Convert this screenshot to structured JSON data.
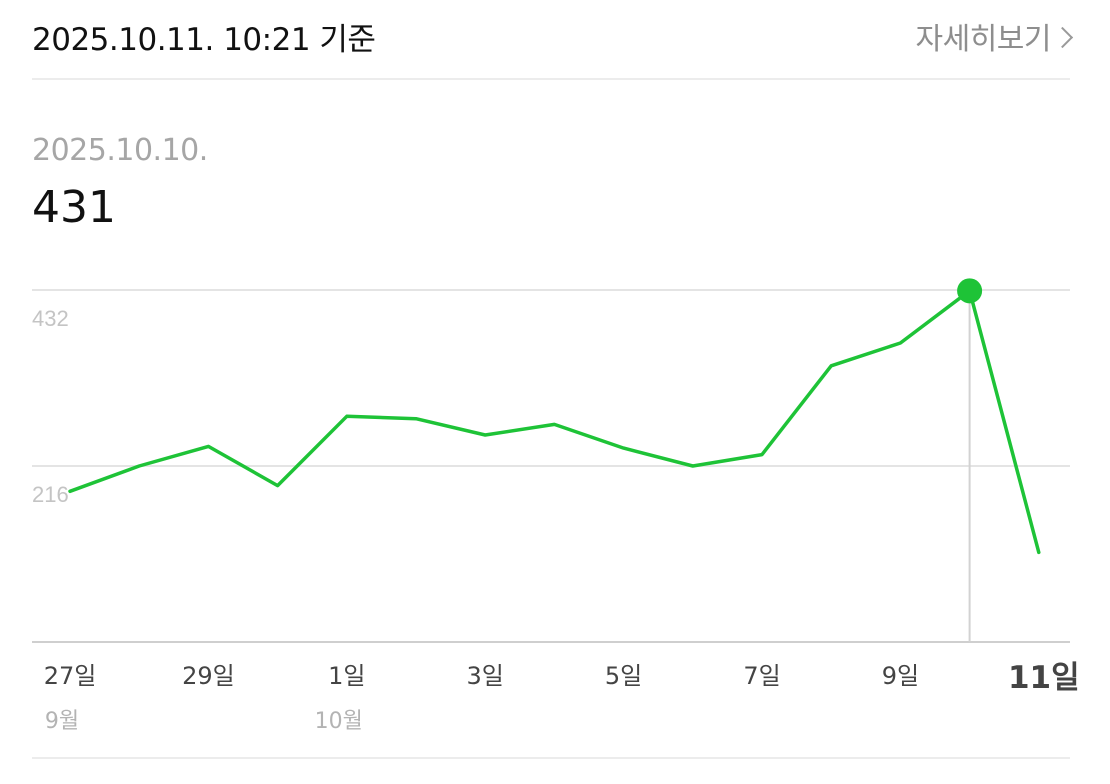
{
  "header": {
    "date_label": "2025.10.11. 10:21 기준",
    "detail_link_label": "자세히보기"
  },
  "selected": {
    "date": "2025.10.10.",
    "value": "431"
  },
  "colors": {
    "line": "#1ec337",
    "grid": "#e4e4e4",
    "axis": "#cfcfcf",
    "tick_text": "#c4c4c4",
    "day_label": "#444444",
    "month_label": "#b3b3b3",
    "highlight_label": "#444444",
    "cursor": "#d2d2d2"
  },
  "chart_data": {
    "type": "line",
    "x": [
      "9/27",
      "9/28",
      "9/29",
      "9/30",
      "10/1",
      "10/2",
      "10/3",
      "10/4",
      "10/5",
      "10/6",
      "10/7",
      "10/8",
      "10/9",
      "10/10",
      "10/11"
    ],
    "series": [
      {
        "values": [
          185,
          216,
          240,
          192,
          277,
          274,
          254,
          267,
          238,
          216,
          230,
          339,
          367,
          431,
          110
        ]
      }
    ],
    "y_ticks": [
      {
        "value": 216,
        "label": "216"
      },
      {
        "value": 432,
        "label": "432"
      }
    ],
    "ylim": [
      0,
      432
    ],
    "x_labels": [
      {
        "index": 0,
        "day": "27일",
        "month": "9월"
      },
      {
        "index": 2,
        "day": "29일",
        "month": ""
      },
      {
        "index": 4,
        "day": "1일",
        "month": "10월"
      },
      {
        "index": 6,
        "day": "3일",
        "month": ""
      },
      {
        "index": 8,
        "day": "5일",
        "month": ""
      },
      {
        "index": 10,
        "day": "7일",
        "month": ""
      },
      {
        "index": 12,
        "day": "9일",
        "month": ""
      },
      {
        "index": 14,
        "day": "11일",
        "month": "",
        "highlight": true
      }
    ],
    "selected_index": 13,
    "grid": true
  }
}
